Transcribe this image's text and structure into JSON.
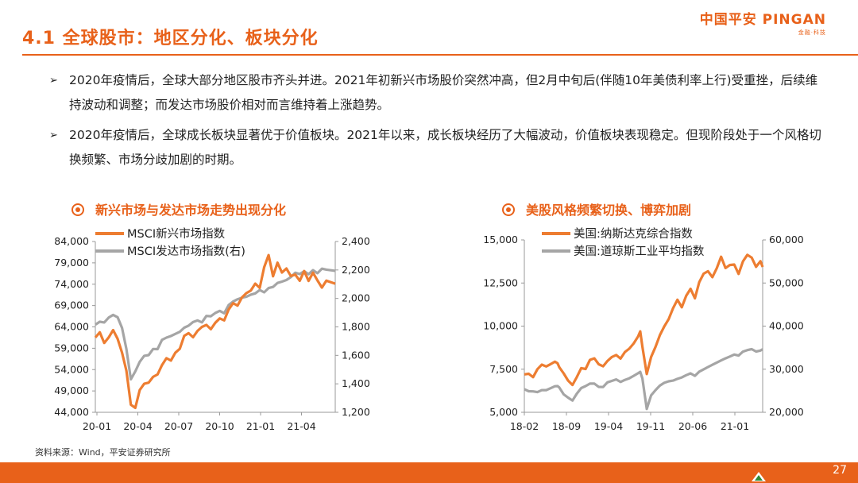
{
  "header": {
    "title": "4.1 全球股市：地区分化、板块分化",
    "logo_brand": "中国平安 PINGAN",
    "logo_tag": "金融·科技"
  },
  "bullets": [
    "2020年疫情后，全球大部分地区股市齐头并进。2021年初新兴市场股价突然冲高，但2月中旬后(伴随10年美债利率上行)受重挫，后续维持波动和调整；而发达市场股价相对而言维持着上涨趋势。",
    "2020年疫情后，全球成长板块显著优于价值板块。2021年以来，成长板块经历了大幅波动，价值板块表现稳定。但现阶段处于一个风格切换频繁、市场分歧加剧的时期。"
  ],
  "colors": {
    "accent": "#e8611a",
    "series_orange": "#ed7d31",
    "series_gray": "#a5a5a5"
  },
  "chart_data": [
    {
      "type": "line",
      "title": "新兴市场与发达市场走势出现分化",
      "x_ticks": [
        "20-01",
        "20-04",
        "20-07",
        "20-10",
        "21-01",
        "21-04"
      ],
      "y_left": {
        "ticks": [
          "84,000",
          "79,000",
          "74,000",
          "69,000",
          "64,000",
          "59,000",
          "54,000",
          "49,000",
          "44,000"
        ],
        "range": [
          44000,
          84000
        ]
      },
      "y_right": {
        "ticks": [
          "2,400",
          "2,200",
          "2,000",
          "1,800",
          "1,600",
          "1,400",
          "1,200"
        ],
        "range": [
          1200,
          2400
        ]
      },
      "series": [
        {
          "name": "MSCI新兴市场指数",
          "axis": "left",
          "color": "#ed7d31",
          "x": [
            0,
            0.3,
            0.6,
            0.9,
            1.2,
            1.5,
            1.8,
            2.1,
            2.4,
            2.7,
            3.0,
            3.3,
            3.6,
            3.9,
            4.2,
            4.5,
            4.8,
            5.1,
            5.4,
            5.7,
            6.0,
            6.3,
            6.6,
            6.9,
            7.2,
            7.5,
            7.8,
            8.1,
            8.4,
            8.7,
            9.0,
            9.3,
            9.6,
            9.9,
            10.2,
            10.5,
            10.8,
            11.1,
            11.4,
            11.7,
            12.0,
            12.3,
            12.6,
            12.9,
            13.2,
            13.5,
            13.8,
            14.1,
            14.4,
            14.7,
            15.0,
            15.3,
            15.6,
            16.2
          ],
          "y": [
            61500,
            63000,
            60500,
            61500,
            63000,
            61000,
            58000,
            54000,
            46000,
            45000,
            49000,
            50500,
            51000,
            52500,
            53000,
            55000,
            56500,
            56000,
            58000,
            59000,
            62000,
            62500,
            61500,
            63000,
            64000,
            64500,
            63500,
            65000,
            66000,
            65500,
            68000,
            69500,
            69000,
            71000,
            72000,
            72500,
            74000,
            73000,
            78000,
            81000,
            76000,
            79000,
            76500,
            77500,
            76000,
            76500,
            75000,
            77000,
            74500,
            76500,
            75000,
            73500,
            75000,
            74000
          ]
        },
        {
          "name": "MSCI发达市场指数(右)",
          "axis": "right",
          "color": "#a5a5a5",
          "x": [
            0,
            0.3,
            0.6,
            0.9,
            1.2,
            1.5,
            1.8,
            2.1,
            2.4,
            2.7,
            3.0,
            3.3,
            3.6,
            3.9,
            4.2,
            4.5,
            4.8,
            5.1,
            5.4,
            5.7,
            6.0,
            6.3,
            6.6,
            6.9,
            7.2,
            7.5,
            7.8,
            8.1,
            8.4,
            8.7,
            9.0,
            9.3,
            9.6,
            9.9,
            10.2,
            10.5,
            10.8,
            11.1,
            11.4,
            11.7,
            12.0,
            12.3,
            12.6,
            12.9,
            13.2,
            13.5,
            13.8,
            14.1,
            14.4,
            14.7,
            15.0,
            15.3,
            15.6,
            16.2
          ],
          "y": [
            1820,
            1840,
            1830,
            1860,
            1880,
            1870,
            1800,
            1650,
            1430,
            1480,
            1550,
            1600,
            1610,
            1650,
            1640,
            1700,
            1720,
            1740,
            1760,
            1770,
            1790,
            1800,
            1830,
            1850,
            1840,
            1880,
            1870,
            1890,
            1910,
            1900,
            1960,
            1980,
            1990,
            2000,
            2010,
            2030,
            2040,
            2060,
            2040,
            2070,
            2080,
            2110,
            2120,
            2130,
            2150,
            2180,
            2170,
            2190,
            2170,
            2200,
            2180,
            2210,
            2200,
            2190
          ]
        }
      ]
    },
    {
      "type": "line",
      "title": "美股风格频繁切换、博弈加剧",
      "x_ticks": [
        "18-02",
        "18-09",
        "19-04",
        "19-11",
        "20-06",
        "21-01"
      ],
      "y_left": {
        "ticks": [
          "15,000",
          "12,500",
          "10,000",
          "7,500",
          "5,000"
        ],
        "range": [
          5000,
          15000
        ]
      },
      "y_right": {
        "ticks": [
          "60,000",
          "50,000",
          "40,000",
          "30,000",
          "20,000"
        ],
        "range": [
          20000,
          60000
        ]
      },
      "series": [
        {
          "name": "美国:纳斯达克综合指数",
          "axis": "left",
          "color": "#ed7d31",
          "x": [
            0,
            1,
            2,
            3,
            4,
            5,
            6,
            7,
            7.6,
            8,
            9,
            10,
            11,
            12,
            13,
            14,
            15,
            16,
            17,
            18,
            19,
            20,
            21,
            22,
            23,
            24,
            25,
            26,
            26.5,
            27,
            28,
            29,
            30,
            31,
            32,
            33,
            34,
            35,
            36,
            37,
            38,
            39,
            40,
            41,
            42,
            43,
            44,
            45,
            46,
            47,
            48,
            49,
            50,
            51,
            52,
            53,
            54,
            54.5
          ],
          "y": [
            7200,
            7300,
            7100,
            7500,
            7700,
            7600,
            7800,
            8000,
            7900,
            7600,
            7200,
            6800,
            6600,
            7100,
            7600,
            7500,
            8000,
            8100,
            7800,
            7700,
            8000,
            8200,
            8300,
            8100,
            8500,
            8700,
            9000,
            9400,
            9700,
            8800,
            7200,
            8200,
            8800,
            9500,
            10000,
            10400,
            11000,
            11500,
            11100,
            11800,
            12200,
            11600,
            12500,
            13000,
            13200,
            12900,
            13400,
            14000,
            13300,
            13500,
            13600,
            13100,
            13800,
            14100,
            13900,
            13400,
            13800,
            13500
          ]
        },
        {
          "name": "美国:道琼斯工业平均指数",
          "axis": "right",
          "color": "#a5a5a5",
          "x": [
            0,
            1,
            2,
            3,
            4,
            5,
            6,
            7,
            7.6,
            8,
            9,
            10,
            11,
            12,
            13,
            14,
            15,
            16,
            17,
            18,
            19,
            20,
            21,
            22,
            23,
            24,
            25,
            26,
            26.5,
            27,
            28,
            29,
            30,
            31,
            32,
            33,
            34,
            35,
            36,
            37,
            38,
            39,
            40,
            41,
            42,
            43,
            44,
            45,
            46,
            47,
            48,
            49,
            50,
            51,
            52,
            53,
            54,
            54.5
          ],
          "y": [
            25500,
            25000,
            24800,
            24500,
            25000,
            25200,
            25800,
            26200,
            26000,
            25500,
            24000,
            23500,
            23000,
            24500,
            25500,
            25800,
            26500,
            26800,
            26200,
            26000,
            26800,
            27000,
            27500,
            27200,
            27800,
            28000,
            28300,
            28800,
            29300,
            28000,
            21000,
            24000,
            25000,
            26000,
            26800,
            27300,
            27500,
            27800,
            28000,
            28500,
            29000,
            28500,
            29500,
            30000,
            30500,
            31000,
            31500,
            32000,
            32500,
            33000,
            33500,
            33200,
            34000,
            34300,
            34600,
            34200,
            34500,
            34700
          ]
        }
      ]
    }
  ],
  "source": "资料来源：Wind，平安证券研究所",
  "page_number": "27"
}
